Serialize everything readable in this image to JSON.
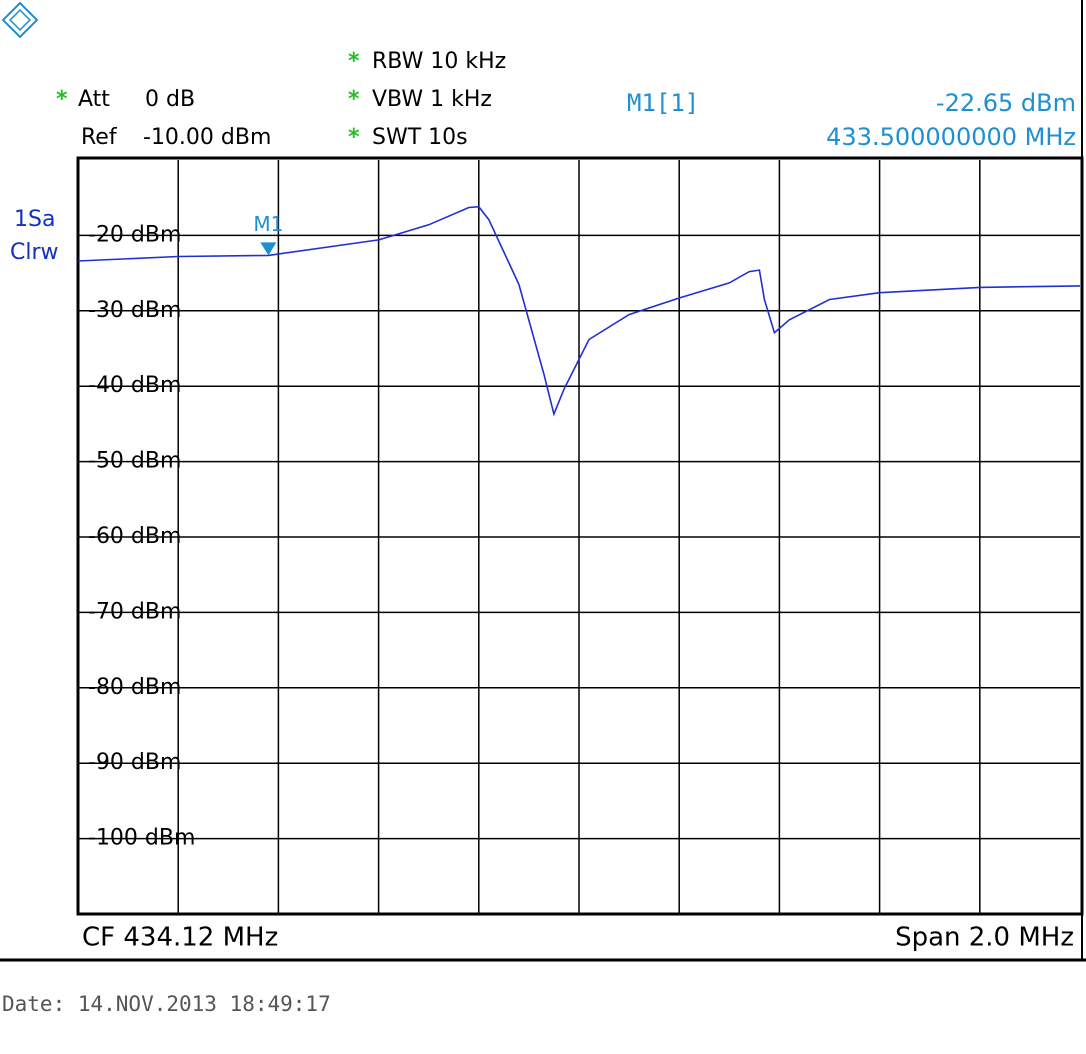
{
  "chart_data": {
    "type": "line",
    "header_left": [
      {
        "star": "*",
        "name": "Att",
        "value": "0 dB"
      },
      {
        "name": "Ref",
        "value": "-10.00 dBm"
      }
    ],
    "header_mid": [
      {
        "star": "*",
        "text": "RBW 10 kHz"
      },
      {
        "star": "*",
        "text": "VBW 1 kHz"
      },
      {
        "star": "*",
        "text": "SWT 10s"
      }
    ],
    "marker": {
      "label": "M1",
      "title": "M1[1]",
      "x": 433.5,
      "y": -22.65,
      "level_text": "-22.65 dBm",
      "freq_text": "433.500000000 MHz"
    },
    "trace_label": [
      "1Sa",
      "Clrw"
    ],
    "footer_left": "CF 434.12 MHz",
    "footer_right": "Span 2.0 MHz",
    "date": "Date: 14.NOV.2013  18:49:17",
    "x": [
      433.12,
      433.32,
      433.5,
      433.72,
      433.82,
      433.9,
      433.92,
      433.94,
      434.0,
      434.05,
      434.07,
      434.09,
      434.14,
      434.22,
      434.32,
      434.42,
      434.46,
      434.48,
      434.49,
      434.51,
      434.54,
      434.62,
      434.72,
      434.92,
      435.12
    ],
    "values": [
      -23.4,
      -22.8,
      -22.65,
      -20.6,
      -18.6,
      -16.3,
      -16.2,
      -17.9,
      -26.5,
      -38.4,
      -43.7,
      -40.4,
      -33.8,
      -30.5,
      -28.3,
      -26.3,
      -24.8,
      -24.6,
      -28.5,
      -32.9,
      -31.2,
      -28.5,
      -27.6,
      -26.9,
      -26.7
    ],
    "color": "#2030d0",
    "xlim": [
      433.12,
      435.12
    ],
    "ylim": [
      -110,
      -10
    ],
    "yticks": [
      {
        "value": -20,
        "label": "-20 dBm"
      },
      {
        "value": -30,
        "label": "-30 dBm"
      },
      {
        "value": -40,
        "label": "-40 dBm"
      },
      {
        "value": -50,
        "label": "-50 dBm"
      },
      {
        "value": -60,
        "label": "-60 dBm"
      },
      {
        "value": -70,
        "label": "-70 dBm"
      },
      {
        "value": -80,
        "label": "-80 dBm"
      },
      {
        "value": -90,
        "label": "-90 dBm"
      },
      {
        "value": -100,
        "label": "-100 dBm"
      }
    ],
    "grid": true
  }
}
